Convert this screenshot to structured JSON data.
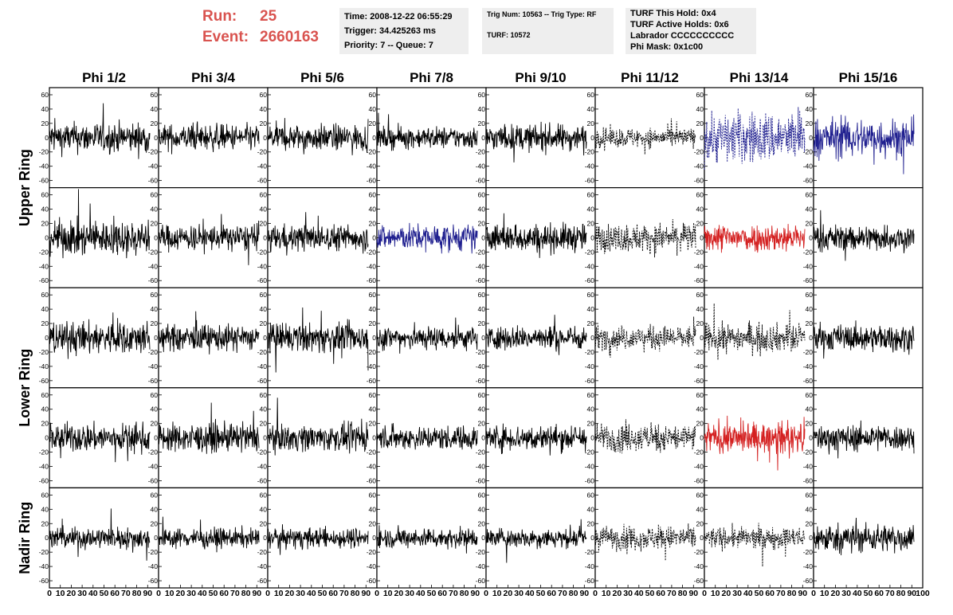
{
  "header": {
    "run_label": "Run:",
    "run_value": "25",
    "event_label": "Event:",
    "event_value": "2660163",
    "time_line": "Time: 2008-12-22 06:55:29",
    "trigger_line": "Trigger: 34.425263 ms",
    "priority_line": "Priority: 7 -- Queue: 7",
    "trig_num_line": "Trig Num: 10563 -- Trig Type: RF",
    "turf_line": "TURF: 10572",
    "turf_hold_line": "TURF This Hold: 0x4",
    "turf_active_line": "TURF Active Holds: 0x6",
    "labrador_line": "Labrador CCCCCCCCCC",
    "phi_mask_line": "Phi Mask: 0x1c00",
    "accent_color": "#d9534f"
  },
  "chart_data": {
    "type": "line",
    "columns": [
      "Phi 1/2",
      "Phi 3/4",
      "Phi 5/6",
      "Phi 7/8",
      "Phi 9/10",
      "Phi 11/12",
      "Phi 13/14",
      "Phi 15/16"
    ],
    "rows": [
      "Upper Ring",
      "Lower Ring",
      "Nadir Ring"
    ],
    "panel_rows": 5,
    "ylim": [
      -70,
      70
    ],
    "yticks": [
      -60,
      -40,
      -20,
      0,
      20,
      40,
      60
    ],
    "xlim": [
      0,
      100
    ],
    "xticks": [
      0,
      10,
      20,
      30,
      40,
      50,
      60,
      70,
      80,
      90,
      100
    ],
    "samples_per_trace": 260,
    "styles": {
      "normal": "#000000",
      "dashed": "#000000",
      "blue": "#1f1f8f",
      "red": "#d42020"
    },
    "panels": [
      [
        "normal",
        "normal",
        "normal",
        "normal",
        "normal",
        "dashed",
        "blue-dashed",
        "blue"
      ],
      [
        "normal",
        "normal",
        "normal",
        "blue",
        "normal",
        "dashed",
        "red",
        "normal"
      ],
      [
        "normal",
        "normal",
        "normal",
        "normal",
        "normal",
        "dashed",
        "dashed",
        "normal"
      ],
      [
        "normal",
        "normal",
        "normal",
        "normal",
        "normal",
        "dashed",
        "red",
        "normal"
      ],
      [
        "normal",
        "normal",
        "normal",
        "normal",
        "normal",
        "dashed",
        "dashed",
        "normal"
      ]
    ],
    "amplitudes": [
      [
        14,
        12,
        12,
        10,
        12,
        9,
        24,
        18
      ],
      [
        16,
        12,
        12,
        12,
        13,
        13,
        13,
        12
      ],
      [
        15,
        12,
        13,
        11,
        11,
        11,
        13,
        12
      ],
      [
        13,
        13,
        12,
        11,
        12,
        13,
        14,
        12
      ],
      [
        10,
        9,
        9,
        9,
        9,
        11,
        10,
        13
      ]
    ]
  }
}
